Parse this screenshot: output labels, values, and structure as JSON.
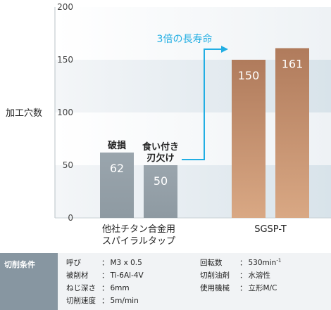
{
  "chart_data": {
    "type": "bar",
    "ylabel": "加工穴数",
    "ylim": [
      0,
      200
    ],
    "yticks": [
      0,
      50,
      100,
      150,
      200
    ],
    "grid": "horizontal bands",
    "groups": [
      {
        "label_lines": [
          "他社チタン合金用",
          "スパイラルタップ"
        ],
        "bars": [
          {
            "value": 62,
            "value_label": "62",
            "annotation": [
              "破損"
            ],
            "color": "#939ea6"
          },
          {
            "value": 50,
            "value_label": "50",
            "annotation": [
              "食い付き",
              "刃欠け"
            ],
            "color": "#939ea6"
          }
        ]
      },
      {
        "label_lines": [
          "SGSP-T"
        ],
        "bars": [
          {
            "value": 150,
            "value_label": "150",
            "annotation": [],
            "color": "#c08d6c"
          },
          {
            "value": 161,
            "value_label": "161",
            "annotation": [],
            "color": "#c08d6c"
          }
        ]
      }
    ],
    "callout": "3倍の長寿命",
    "accent_color": "#22aee3"
  },
  "conditions": {
    "header": "切削条件",
    "items": [
      {
        "label": "呼び",
        "value": "M3 x 0.5"
      },
      {
        "label": "被削材",
        "value": "Ti-6Al-4V"
      },
      {
        "label": "ねじ深さ",
        "value": "6mm"
      },
      {
        "label": "切削速度",
        "value": "5m/min"
      },
      {
        "label": "回転数",
        "value": "530min",
        "sup": "-1"
      },
      {
        "label": "切削油剤",
        "value": "水溶性"
      },
      {
        "label": "使用機械",
        "value": "立形M/C"
      }
    ]
  }
}
